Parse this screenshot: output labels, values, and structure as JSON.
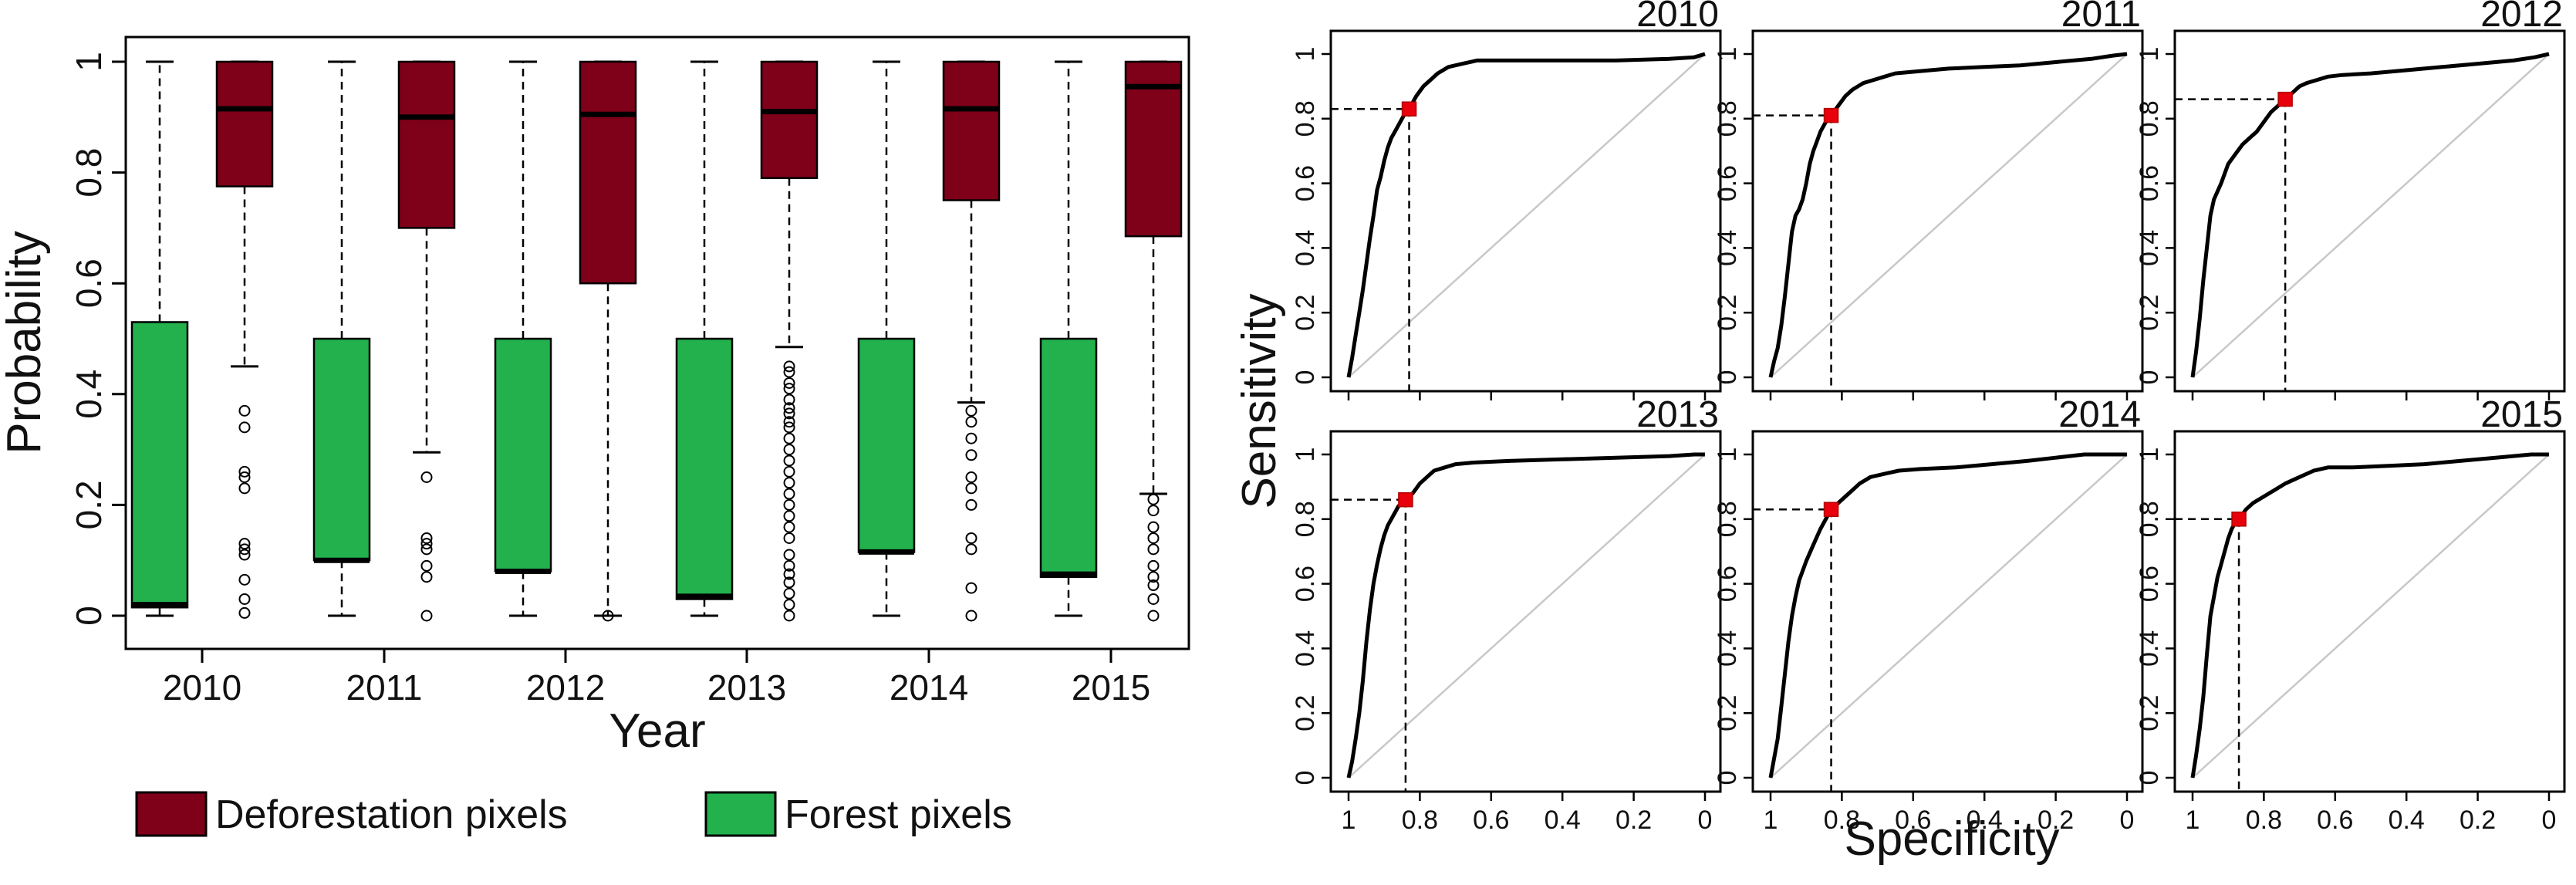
{
  "chart_data": [
    {
      "type": "boxplot",
      "ylabel": "Probability",
      "xlabel": "Year",
      "ylim": [
        0,
        1
      ],
      "y_ticks": [
        "0",
        "0.2",
        "0.4",
        "0.6",
        "0.8",
        "1"
      ],
      "categories": [
        "2010",
        "2011",
        "2012",
        "2013",
        "2014",
        "2015"
      ],
      "legend_position": "bottom",
      "series": [
        {
          "name": "Deforestation pixels",
          "color": "#7f0019",
          "boxes": [
            {
              "min": 0.45,
              "q1": 0.775,
              "median": 0.915,
              "q3": 1.0,
              "max": 1.0,
              "outliers": [
                0.37,
                0.34,
                0.26,
                0.25,
                0.23,
                0.13,
                0.12,
                0.11,
                0.065,
                0.03,
                0.005
              ]
            },
            {
              "min": 0.295,
              "q1": 0.7,
              "median": 0.9,
              "q3": 1.0,
              "max": 1.0,
              "outliers": [
                0.25,
                0.14,
                0.13,
                0.12,
                0.09,
                0.07,
                0.0
              ]
            },
            {
              "min": 0.0,
              "q1": 0.6,
              "median": 0.905,
              "q3": 1.0,
              "max": 1.0,
              "outliers": [
                0.0
              ]
            },
            {
              "min": 0.485,
              "q1": 0.79,
              "median": 0.91,
              "q3": 1.0,
              "max": 1.0,
              "outliers": [
                0.45,
                0.44,
                0.42,
                0.41,
                0.39,
                0.375,
                0.365,
                0.35,
                0.34,
                0.32,
                0.3,
                0.28,
                0.26,
                0.24,
                0.22,
                0.2,
                0.18,
                0.16,
                0.14,
                0.11,
                0.09,
                0.075,
                0.06,
                0.04,
                0.02,
                0.0
              ]
            },
            {
              "min": 0.385,
              "q1": 0.75,
              "median": 0.915,
              "q3": 1.0,
              "max": 1.0,
              "outliers": [
                0.37,
                0.35,
                0.32,
                0.29,
                0.25,
                0.23,
                0.2,
                0.14,
                0.12,
                0.05,
                0.0
              ]
            },
            {
              "min": 0.22,
              "q1": 0.685,
              "median": 0.955,
              "q3": 1.0,
              "max": 1.0,
              "outliers": [
                0.21,
                0.19,
                0.16,
                0.14,
                0.12,
                0.09,
                0.07,
                0.055,
                0.03,
                0.0
              ]
            }
          ]
        },
        {
          "name": "Forest pixels",
          "color": "#22b14c",
          "boxes": [
            {
              "min": 0.0,
              "q1": 0.015,
              "median": 0.02,
              "q3": 0.53,
              "max": 1.0,
              "outliers": []
            },
            {
              "min": 0.0,
              "q1": 0.1,
              "median": 0.1,
              "q3": 0.5,
              "max": 1.0,
              "outliers": []
            },
            {
              "min": 0.0,
              "q1": 0.08,
              "median": 0.08,
              "q3": 0.5,
              "max": 1.0,
              "outliers": []
            },
            {
              "min": 0.0,
              "q1": 0.03,
              "median": 0.035,
              "q3": 0.5,
              "max": 1.0,
              "outliers": []
            },
            {
              "min": 0.0,
              "q1": 0.115,
              "median": 0.115,
              "q3": 0.5,
              "max": 1.0,
              "outliers": []
            },
            {
              "min": 0.0,
              "q1": 0.07,
              "median": 0.075,
              "q3": 0.5,
              "max": 1.0,
              "outliers": []
            }
          ]
        }
      ]
    },
    {
      "type": "line",
      "xlabel": "Specificity",
      "ylabel": "Sensitivity",
      "xlim": [
        1,
        0
      ],
      "ylim": [
        0,
        1
      ],
      "x_ticks": [
        "1",
        "0.8",
        "0.6",
        "0.4",
        "0.2",
        "0"
      ],
      "y_ticks": [
        "0",
        "0.2",
        "0.4",
        "0.6",
        "0.8",
        "1"
      ],
      "diagonal_color": "#c8c8c8",
      "threshold_color": "#e8000b",
      "panels": [
        {
          "title": "2010",
          "threshold": {
            "specificity": 0.83,
            "sensitivity": 0.83
          },
          "curve": [
            [
              1,
              0
            ],
            [
              0.99,
              0.06
            ],
            [
              0.98,
              0.13
            ],
            [
              0.97,
              0.2
            ],
            [
              0.96,
              0.27
            ],
            [
              0.95,
              0.35
            ],
            [
              0.94,
              0.43
            ],
            [
              0.93,
              0.5
            ],
            [
              0.92,
              0.58
            ],
            [
              0.91,
              0.62
            ],
            [
              0.9,
              0.67
            ],
            [
              0.89,
              0.71
            ],
            [
              0.88,
              0.74
            ],
            [
              0.87,
              0.76
            ],
            [
              0.86,
              0.78
            ],
            [
              0.85,
              0.8
            ],
            [
              0.84,
              0.82
            ],
            [
              0.83,
              0.83
            ],
            [
              0.81,
              0.87
            ],
            [
              0.79,
              0.9
            ],
            [
              0.77,
              0.92
            ],
            [
              0.75,
              0.94
            ],
            [
              0.72,
              0.96
            ],
            [
              0.68,
              0.97
            ],
            [
              0.64,
              0.98
            ],
            [
              0.55,
              0.98
            ],
            [
              0.4,
              0.98
            ],
            [
              0.25,
              0.98
            ],
            [
              0.1,
              0.985
            ],
            [
              0.03,
              0.99
            ],
            [
              0,
              1
            ]
          ]
        },
        {
          "title": "2011",
          "threshold": {
            "specificity": 0.83,
            "sensitivity": 0.81
          },
          "curve": [
            [
              1,
              0
            ],
            [
              0.99,
              0.05
            ],
            [
              0.98,
              0.09
            ],
            [
              0.97,
              0.16
            ],
            [
              0.96,
              0.25
            ],
            [
              0.95,
              0.35
            ],
            [
              0.94,
              0.45
            ],
            [
              0.93,
              0.5
            ],
            [
              0.92,
              0.52
            ],
            [
              0.91,
              0.55
            ],
            [
              0.9,
              0.6
            ],
            [
              0.89,
              0.66
            ],
            [
              0.88,
              0.7
            ],
            [
              0.87,
              0.73
            ],
            [
              0.86,
              0.76
            ],
            [
              0.85,
              0.78
            ],
            [
              0.84,
              0.8
            ],
            [
              0.83,
              0.81
            ],
            [
              0.81,
              0.84
            ],
            [
              0.79,
              0.87
            ],
            [
              0.77,
              0.89
            ],
            [
              0.74,
              0.91
            ],
            [
              0.71,
              0.92
            ],
            [
              0.68,
              0.93
            ],
            [
              0.65,
              0.94
            ],
            [
              0.6,
              0.945
            ],
            [
              0.5,
              0.955
            ],
            [
              0.4,
              0.96
            ],
            [
              0.3,
              0.965
            ],
            [
              0.2,
              0.975
            ],
            [
              0.1,
              0.985
            ],
            [
              0.04,
              0.995
            ],
            [
              0,
              1
            ]
          ]
        },
        {
          "title": "2012",
          "threshold": {
            "specificity": 0.74,
            "sensitivity": 0.86
          },
          "curve": [
            [
              1,
              0
            ],
            [
              0.99,
              0.08
            ],
            [
              0.98,
              0.18
            ],
            [
              0.97,
              0.3
            ],
            [
              0.96,
              0.4
            ],
            [
              0.95,
              0.5
            ],
            [
              0.94,
              0.55
            ],
            [
              0.92,
              0.6
            ],
            [
              0.9,
              0.66
            ],
            [
              0.88,
              0.69
            ],
            [
              0.86,
              0.72
            ],
            [
              0.84,
              0.74
            ],
            [
              0.82,
              0.76
            ],
            [
              0.8,
              0.79
            ],
            [
              0.78,
              0.82
            ],
            [
              0.76,
              0.84
            ],
            [
              0.74,
              0.86
            ],
            [
              0.72,
              0.88
            ],
            [
              0.7,
              0.9
            ],
            [
              0.68,
              0.91
            ],
            [
              0.65,
              0.92
            ],
            [
              0.62,
              0.93
            ],
            [
              0.58,
              0.935
            ],
            [
              0.5,
              0.94
            ],
            [
              0.4,
              0.95
            ],
            [
              0.3,
              0.96
            ],
            [
              0.2,
              0.97
            ],
            [
              0.1,
              0.98
            ],
            [
              0.04,
              0.99
            ],
            [
              0,
              1
            ]
          ]
        },
        {
          "title": "2013",
          "threshold": {
            "specificity": 0.84,
            "sensitivity": 0.86
          },
          "curve": [
            [
              1,
              0
            ],
            [
              0.99,
              0.05
            ],
            [
              0.98,
              0.12
            ],
            [
              0.97,
              0.2
            ],
            [
              0.96,
              0.3
            ],
            [
              0.95,
              0.42
            ],
            [
              0.94,
              0.52
            ],
            [
              0.93,
              0.6
            ],
            [
              0.92,
              0.66
            ],
            [
              0.91,
              0.71
            ],
            [
              0.9,
              0.75
            ],
            [
              0.89,
              0.78
            ],
            [
              0.88,
              0.8
            ],
            [
              0.87,
              0.82
            ],
            [
              0.86,
              0.84
            ],
            [
              0.84,
              0.86
            ],
            [
              0.82,
              0.88
            ],
            [
              0.8,
              0.91
            ],
            [
              0.78,
              0.93
            ],
            [
              0.76,
              0.95
            ],
            [
              0.73,
              0.96
            ],
            [
              0.7,
              0.97
            ],
            [
              0.65,
              0.975
            ],
            [
              0.55,
              0.98
            ],
            [
              0.4,
              0.985
            ],
            [
              0.25,
              0.99
            ],
            [
              0.1,
              0.995
            ],
            [
              0.03,
              1
            ],
            [
              0,
              1
            ]
          ]
        },
        {
          "title": "2014",
          "threshold": {
            "specificity": 0.83,
            "sensitivity": 0.83
          },
          "curve": [
            [
              1,
              0
            ],
            [
              0.99,
              0.06
            ],
            [
              0.98,
              0.12
            ],
            [
              0.97,
              0.22
            ],
            [
              0.96,
              0.32
            ],
            [
              0.95,
              0.42
            ],
            [
              0.94,
              0.5
            ],
            [
              0.93,
              0.56
            ],
            [
              0.92,
              0.61
            ],
            [
              0.9,
              0.67
            ],
            [
              0.88,
              0.72
            ],
            [
              0.86,
              0.77
            ],
            [
              0.84,
              0.81
            ],
            [
              0.83,
              0.83
            ],
            [
              0.81,
              0.85
            ],
            [
              0.79,
              0.87
            ],
            [
              0.77,
              0.89
            ],
            [
              0.75,
              0.91
            ],
            [
              0.72,
              0.93
            ],
            [
              0.68,
              0.94
            ],
            [
              0.64,
              0.95
            ],
            [
              0.58,
              0.955
            ],
            [
              0.48,
              0.96
            ],
            [
              0.38,
              0.97
            ],
            [
              0.28,
              0.98
            ],
            [
              0.2,
              0.99
            ],
            [
              0.12,
              1
            ],
            [
              0,
              1
            ]
          ]
        },
        {
          "title": "2015",
          "threshold": {
            "specificity": 0.87,
            "sensitivity": 0.8
          },
          "curve": [
            [
              1,
              0
            ],
            [
              0.99,
              0.07
            ],
            [
              0.98,
              0.15
            ],
            [
              0.97,
              0.25
            ],
            [
              0.96,
              0.38
            ],
            [
              0.95,
              0.5
            ],
            [
              0.94,
              0.56
            ],
            [
              0.93,
              0.62
            ],
            [
              0.92,
              0.66
            ],
            [
              0.91,
              0.7
            ],
            [
              0.9,
              0.74
            ],
            [
              0.89,
              0.77
            ],
            [
              0.88,
              0.79
            ],
            [
              0.87,
              0.8
            ],
            [
              0.85,
              0.83
            ],
            [
              0.83,
              0.85
            ],
            [
              0.8,
              0.87
            ],
            [
              0.77,
              0.89
            ],
            [
              0.74,
              0.91
            ],
            [
              0.7,
              0.93
            ],
            [
              0.66,
              0.95
            ],
            [
              0.62,
              0.96
            ],
            [
              0.55,
              0.96
            ],
            [
              0.45,
              0.965
            ],
            [
              0.35,
              0.97
            ],
            [
              0.25,
              0.98
            ],
            [
              0.15,
              0.99
            ],
            [
              0.05,
              1
            ],
            [
              0,
              1
            ]
          ]
        }
      ]
    }
  ]
}
